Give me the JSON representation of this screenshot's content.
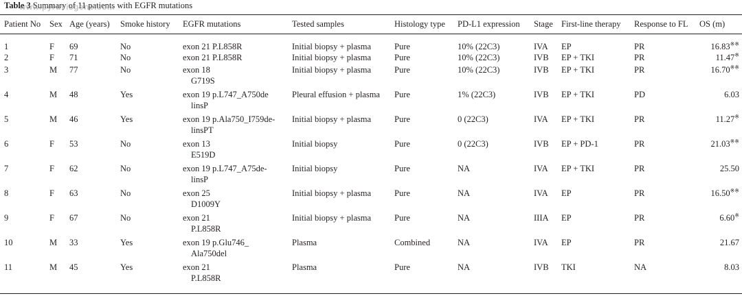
{
  "caption": {
    "label": "Table 3",
    "text": "Summary of 11 patients with EGFR mutations"
  },
  "watermark": "www.pyruvisgene.com",
  "columns": [
    "Patient No",
    "Sex",
    "Age (years)",
    "Smoke history",
    "EGFR mutations",
    "Tested samples",
    "Histology type",
    "PD-L1 expression",
    "Stage",
    "First-line therapy",
    "Response to FL",
    "OS (m)"
  ],
  "rows": [
    {
      "no": "1",
      "sex": "F",
      "age": "69",
      "smoke": "No",
      "egfr": [
        "exon 21 P.L858R"
      ],
      "samples": "Initial biopsy + plasma",
      "histology": "Pure",
      "pdl1": "10% (22C3)",
      "stage": "IVA",
      "therapy": "EP",
      "response": "PR",
      "os": "16.83",
      "os_mark": "※※"
    },
    {
      "no": "2",
      "sex": "F",
      "age": "71",
      "smoke": "No",
      "egfr": [
        "exon 21 P.L858R"
      ],
      "samples": "Initial biopsy + plasma",
      "histology": "Pure",
      "pdl1": "10% (22C3)",
      "stage": "IVB",
      "therapy": "EP + TKI",
      "response": "PR",
      "os": "11.47",
      "os_mark": "※"
    },
    {
      "no": "3",
      "sex": "M",
      "age": "77",
      "smoke": "No",
      "egfr": [
        "exon 18",
        "G719S"
      ],
      "samples": "Initial biopsy + plasma",
      "histology": "Pure",
      "pdl1": "10% (22C3)",
      "stage": "IVB",
      "therapy": "EP + TKI",
      "response": "PR",
      "os": "16.70",
      "os_mark": "※※"
    },
    {
      "no": "4",
      "sex": "M",
      "age": "48",
      "smoke": "Yes",
      "egfr": [
        "exon 19 p.L747_A750de",
        "linsP"
      ],
      "samples": "Pleural effusion + plasma",
      "histology": "Pure",
      "pdl1": "1% (22C3)",
      "stage": "IVB",
      "therapy": "EP + TKI",
      "response": "PD",
      "os": "6.03",
      "os_mark": ""
    },
    {
      "no": "5",
      "sex": "M",
      "age": "46",
      "smoke": "Yes",
      "egfr": [
        "exon 19 p.Ala750_I759de-",
        "linsPT"
      ],
      "samples": "Initial biopsy + plasma",
      "histology": "Pure",
      "pdl1": "0 (22C3)",
      "stage": "IVA",
      "therapy": "EP + TKI",
      "response": "PR",
      "os": "11.27",
      "os_mark": "※"
    },
    {
      "no": "6",
      "sex": "F",
      "age": "53",
      "smoke": "No",
      "egfr": [
        "exon 13",
        "E519D"
      ],
      "samples": "Initial biopsy",
      "histology": "Pure",
      "pdl1": "0 (22C3)",
      "stage": "IVB",
      "therapy": "EP + PD-1",
      "response": "PR",
      "os": "21.03",
      "os_mark": "※※"
    },
    {
      "no": "7",
      "sex": "F",
      "age": "62",
      "smoke": "No",
      "egfr": [
        "exon 19 p.L747_A75de-",
        "linsP"
      ],
      "samples": "Initial biopsy",
      "histology": "Pure",
      "pdl1": "NA",
      "stage": "IVA",
      "therapy": "EP + TKI",
      "response": "PR",
      "os": "25.50",
      "os_mark": ""
    },
    {
      "no": "8",
      "sex": "F",
      "age": "63",
      "smoke": "No",
      "egfr": [
        "exon 25",
        "D1009Y"
      ],
      "samples": "Initial biopsy + plasma",
      "histology": "Pure",
      "pdl1": "NA",
      "stage": "IVA",
      "therapy": "EP",
      "response": "PR",
      "os": "16.50",
      "os_mark": "※※"
    },
    {
      "no": "9",
      "sex": "F",
      "age": "67",
      "smoke": "No",
      "egfr": [
        "exon 21",
        "P.L858R"
      ],
      "samples": "Initial biopsy + plasma",
      "histology": "Pure",
      "pdl1": "NA",
      "stage": "IIIA",
      "therapy": "EP",
      "response": "PR",
      "os": "6.60",
      "os_mark": "※"
    },
    {
      "no": "10",
      "sex": "M",
      "age": "33",
      "smoke": "Yes",
      "egfr": [
        "exon 19 p.Glu746_",
        "Ala750del"
      ],
      "samples": "Plasma",
      "histology": "Combined",
      "pdl1": "NA",
      "stage": "IVA",
      "therapy": "EP",
      "response": "PR",
      "os": "21.67",
      "os_mark": ""
    },
    {
      "no": "11",
      "sex": "M",
      "age": "45",
      "smoke": "Yes",
      "egfr": [
        "exon 21",
        "P.L858R"
      ],
      "samples": "Plasma",
      "histology": "Pure",
      "pdl1": "NA",
      "stage": "IVB",
      "therapy": "TKI",
      "response": "NA",
      "os": "8.03",
      "os_mark": ""
    }
  ]
}
